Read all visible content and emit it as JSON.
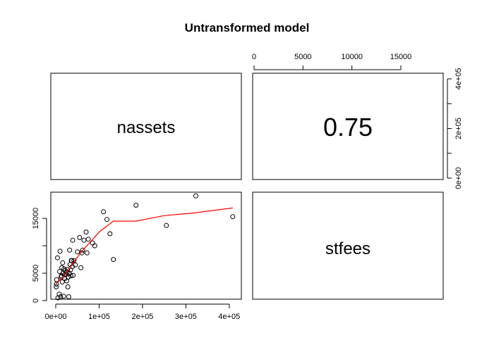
{
  "chart_data": {
    "type": "scatter",
    "title": "Untransformed model",
    "variables": [
      "nassets",
      "stfees"
    ],
    "correlation_label": "0.75",
    "x_variable": "nassets",
    "y_variable": "stfees",
    "xlim": [
      0,
      410000
    ],
    "ylim": [
      0,
      19000
    ],
    "x_ticks": [
      0,
      100000,
      200000,
      300000,
      400000
    ],
    "x_tick_labels": [
      "0e+00",
      "1e+05",
      "2e+05",
      "3e+05",
      "4e+05"
    ],
    "y_ticks": [
      0,
      5000,
      10000,
      15000
    ],
    "y_tick_labels": [
      "0",
      "5000",
      "",
      "15000"
    ],
    "top_ticks": [
      0,
      5000,
      10000,
      15000
    ],
    "top_tick_labels": [
      "0",
      "5000",
      "10000",
      "15000"
    ],
    "right_ticks": [
      0,
      100000,
      200000,
      300000,
      400000
    ],
    "right_tick_labels": [
      "0e+00",
      "",
      "2e+05",
      "",
      "4e+05"
    ],
    "points": [
      [
        1000,
        2500
      ],
      [
        1500,
        3000
      ],
      [
        2000,
        3800
      ],
      [
        4000,
        7800
      ],
      [
        5000,
        500
      ],
      [
        8000,
        1200
      ],
      [
        9000,
        5300
      ],
      [
        10000,
        9000
      ],
      [
        11000,
        700
      ],
      [
        12000,
        4300
      ],
      [
        13000,
        4500
      ],
      [
        14000,
        6000
      ],
      [
        15000,
        3400
      ],
      [
        16000,
        6900
      ],
      [
        17000,
        5000
      ],
      [
        18000,
        800
      ],
      [
        19000,
        5800
      ],
      [
        20000,
        4700
      ],
      [
        21000,
        4000
      ],
      [
        22000,
        5500
      ],
      [
        24000,
        4800
      ],
      [
        25000,
        3600
      ],
      [
        26000,
        5200
      ],
      [
        27000,
        5700
      ],
      [
        28000,
        2500
      ],
      [
        29000,
        4300
      ],
      [
        30000,
        700
      ],
      [
        31000,
        5000
      ],
      [
        32000,
        9200
      ],
      [
        33000,
        6600
      ],
      [
        34000,
        5600
      ],
      [
        35000,
        4500
      ],
      [
        36000,
        7300
      ],
      [
        37000,
        7300
      ],
      [
        38000,
        6200
      ],
      [
        39000,
        11000
      ],
      [
        40000,
        4600
      ],
      [
        42000,
        7300
      ],
      [
        45000,
        6500
      ],
      [
        50000,
        8900
      ],
      [
        55000,
        11500
      ],
      [
        58000,
        6000
      ],
      [
        60000,
        8700
      ],
      [
        62000,
        9200
      ],
      [
        65000,
        11000
      ],
      [
        70000,
        12500
      ],
      [
        72000,
        8700
      ],
      [
        75000,
        11200
      ],
      [
        85000,
        10500
      ],
      [
        90000,
        10000
      ],
      [
        110000,
        16200
      ],
      [
        118000,
        14800
      ],
      [
        125000,
        12200
      ],
      [
        133000,
        7500
      ],
      [
        185000,
        17400
      ],
      [
        255000,
        13700
      ],
      [
        323000,
        19100
      ],
      [
        408000,
        15300
      ]
    ],
    "smoother": [
      [
        0,
        3000
      ],
      [
        20000,
        4600
      ],
      [
        40000,
        6800
      ],
      [
        60000,
        9000
      ],
      [
        80000,
        10700
      ],
      [
        100000,
        12500
      ],
      [
        133000,
        14500
      ],
      [
        185000,
        14500
      ],
      [
        250000,
        15500
      ],
      [
        320000,
        16000
      ],
      [
        408000,
        16900
      ]
    ],
    "point_color": "#000000",
    "smoother_color": "#ff0000"
  }
}
